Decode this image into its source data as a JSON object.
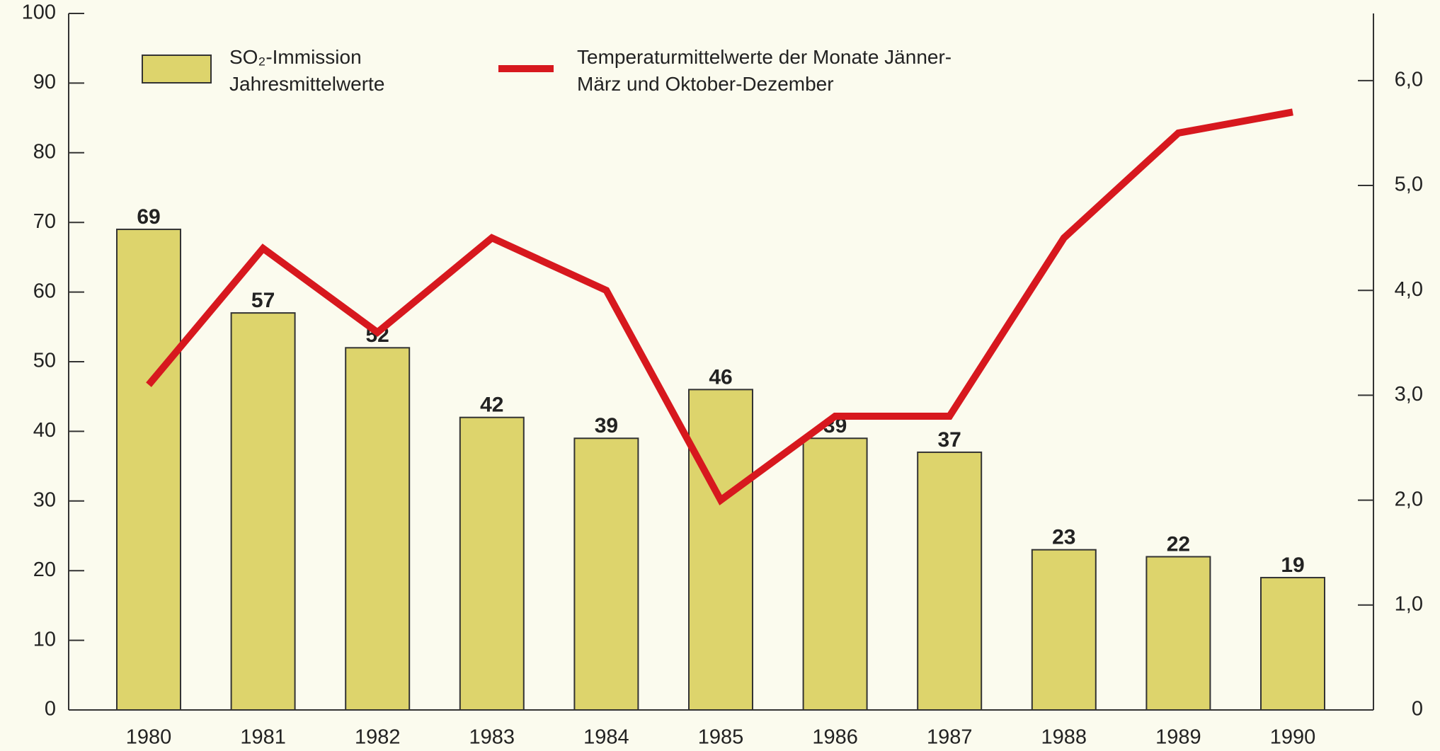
{
  "chart_data": {
    "type": "bar-line",
    "categories": [
      "1980",
      "1981",
      "1982",
      "1983",
      "1984",
      "1985",
      "1986",
      "1987",
      "1988",
      "1989",
      "1990"
    ],
    "series": [
      {
        "name": "SO₂-Immission Jahresmittelwerte",
        "color": "#ddd46c",
        "type": "bar",
        "values": [
          69,
          57,
          52,
          42,
          39,
          46,
          39,
          37,
          23,
          22,
          19
        ]
      },
      {
        "name": "Temperaturmittelwerte der Monate Jänner-März und Oktober-Dezember",
        "color": "#d7181e",
        "type": "line",
        "axis": "y2",
        "values": [
          3.1,
          4.4,
          3.6,
          4.5,
          4.0,
          2.0,
          2.8,
          2.8,
          4.5,
          5.5,
          5.7
        ]
      }
    ],
    "ylim": [
      0,
      100
    ],
    "yticks": [
      0,
      10,
      20,
      30,
      40,
      50,
      60,
      70,
      80,
      90,
      100
    ],
    "y2lim": [
      0,
      6.64
    ],
    "y2ticks": [
      0,
      {
        "value": 1,
        "label": "1,0"
      },
      {
        "value": 2,
        "label": "2,0"
      },
      {
        "value": 3,
        "label": "3,0"
      },
      {
        "value": 4,
        "label": "4,0"
      },
      {
        "value": 5,
        "label": "5,0"
      },
      {
        "value": 6,
        "label": "6,0"
      }
    ]
  }
}
